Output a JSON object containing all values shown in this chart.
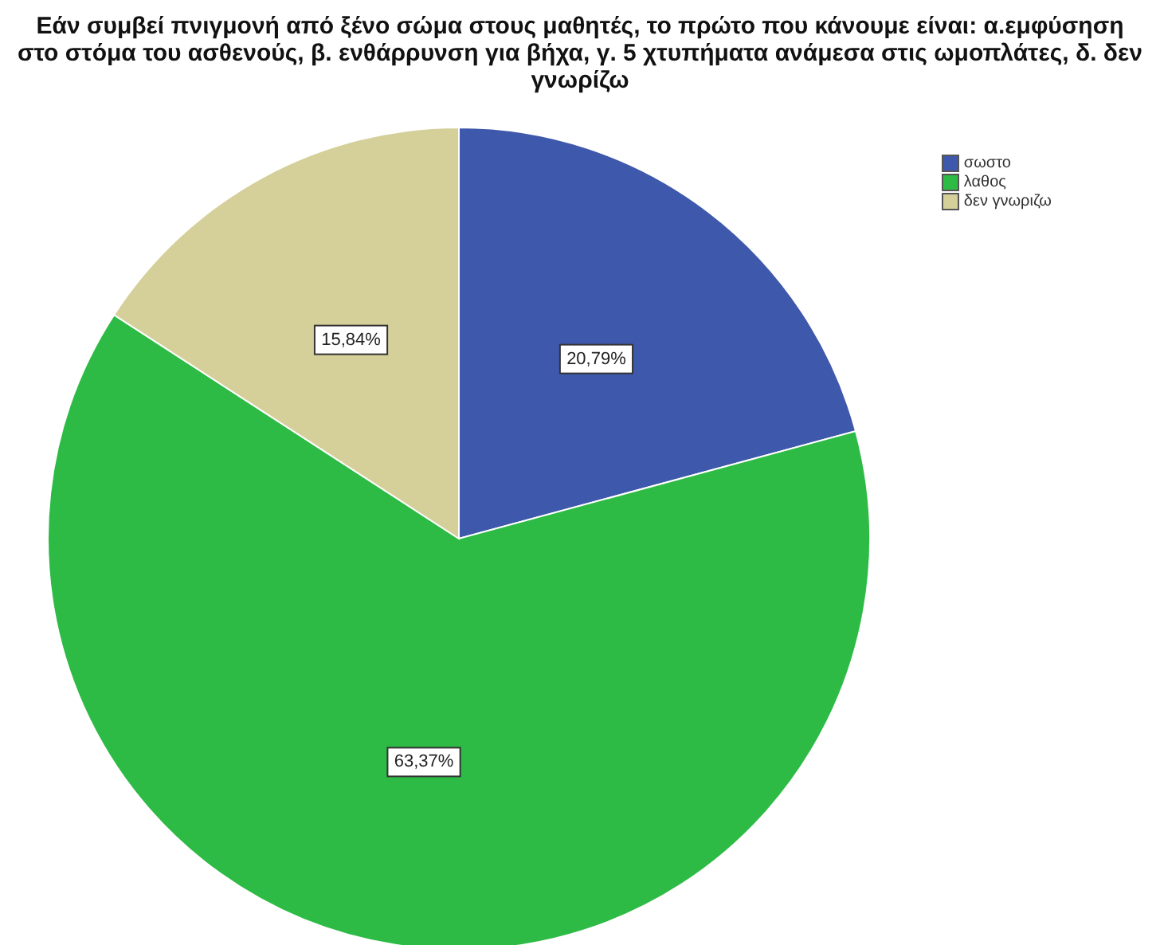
{
  "chart_data": {
    "type": "pie",
    "title": "Εάν συμβεί πνιγμονή από ξένο σώμα στους μαθητές, το πρώτο που κάνουμε είναι: α.εμφύσηση στο στόμα του ασθενούς, β. ενθάρρυνση για βήχα, γ. 5 χτυπήματα ανάμεσα στις ωμοπλάτες, δ. δεν γνωρίζω",
    "categories": [
      "σωστο",
      "λαθος",
      "δεν γνωριζω"
    ],
    "values": [
      20.79,
      63.37,
      15.84
    ],
    "colors": [
      "#3e58ac",
      "#2dbb45",
      "#d5cf9a"
    ],
    "value_labels": [
      "20,79%",
      "63,37%",
      "15,84%"
    ],
    "legend": "top right"
  }
}
